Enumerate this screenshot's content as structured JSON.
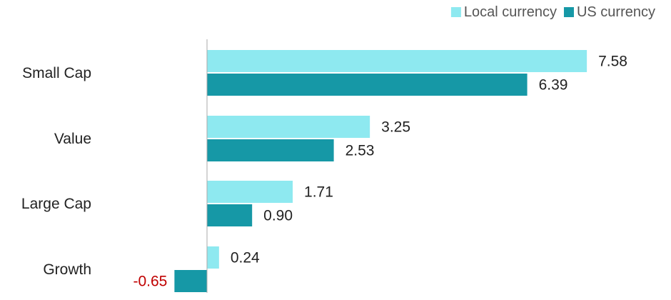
{
  "chart_data": {
    "type": "bar",
    "orientation": "horizontal",
    "categories": [
      "Small Cap",
      "Value",
      "Large Cap",
      "Growth"
    ],
    "series": [
      {
        "name": "Local currency",
        "values": [
          7.58,
          3.25,
          1.71,
          0.24
        ],
        "labels": [
          "7.58",
          "3.25",
          "1.71",
          "0.24"
        ]
      },
      {
        "name": "US currency",
        "values": [
          6.39,
          2.53,
          0.9,
          -0.65
        ],
        "labels": [
          "6.39",
          "2.53",
          "0.90",
          "-0.65"
        ]
      }
    ],
    "xlim": [
      -1.0,
      9.8
    ],
    "legend_position": "top-right",
    "grid": false
  },
  "colors": {
    "local": "#8ee9f0",
    "us": "#1698a6",
    "negative_label": "#c00000",
    "axis": "#aaaaaa"
  }
}
